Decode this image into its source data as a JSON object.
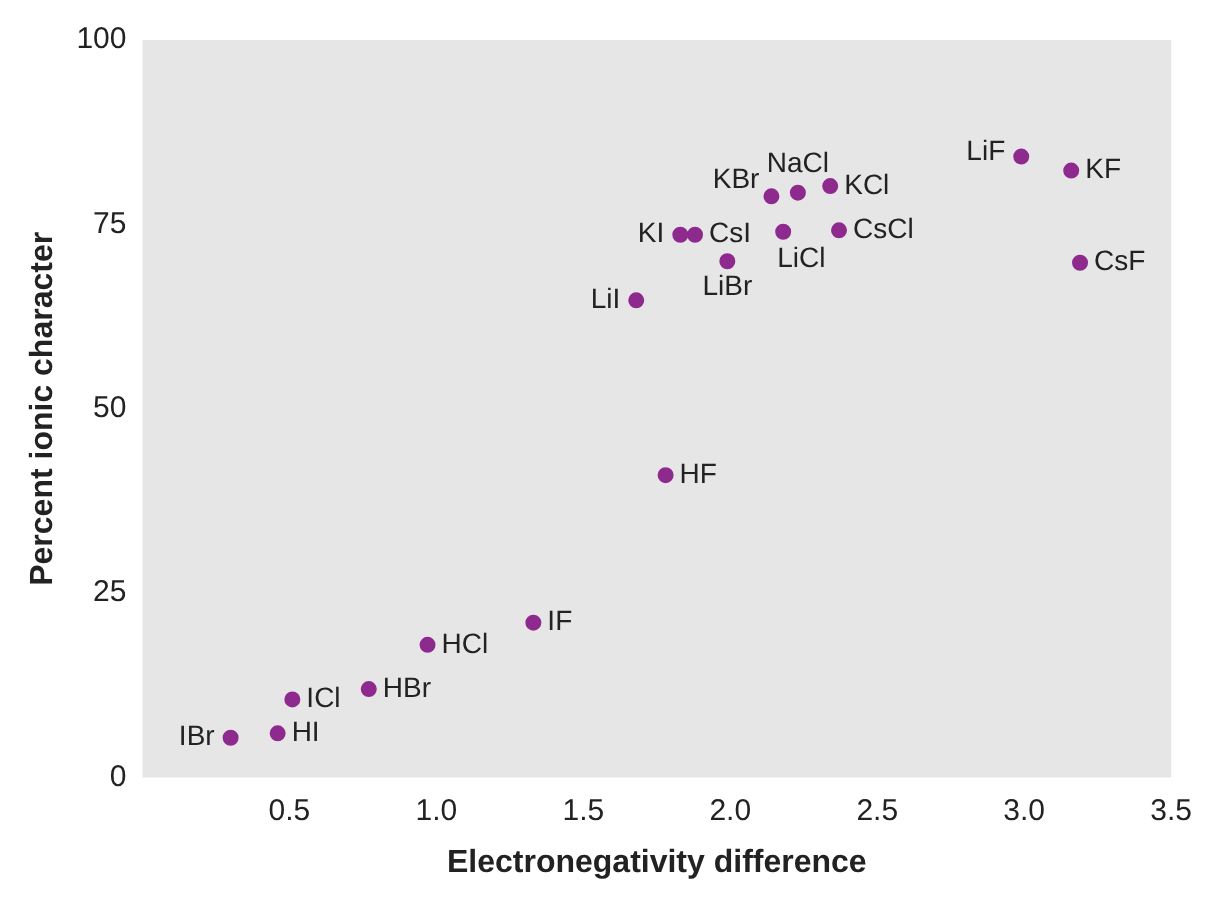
{
  "chart_data": {
    "type": "scatter",
    "xlabel": "Electronegativity difference",
    "ylabel": "Percent ionic character",
    "xlim": [
      0,
      3.5
    ],
    "xticks": [
      0.5,
      {
        "value": 1,
        "label": "1.0"
      },
      1.5,
      {
        "value": 2,
        "label": "2.0"
      },
      2.5,
      {
        "value": 3,
        "label": "3.0"
      },
      3.5
    ],
    "ylim": [
      0,
      100
    ],
    "yticks": [
      0,
      25,
      50,
      75,
      100
    ],
    "grid": false,
    "legend": false,
    "marker": "circle",
    "series": [
      {
        "color": "#8e2a8e",
        "x": [
          0.3,
          0.46,
          0.51,
          0.77,
          0.97,
          1.33,
          1.78,
          1.68,
          1.99,
          1.83,
          1.88,
          2.18,
          2.14,
          2.23,
          2.34,
          2.37,
          2.99,
          3.16,
          3.19
        ],
        "values": [
          5.4,
          6,
          10.6,
          12,
          18,
          21,
          41,
          64.7,
          70,
          73.6,
          73.6,
          74,
          78.8,
          79.3,
          80.2,
          74.2,
          84.2,
          82.3,
          69.8
        ]
      }
    ],
    "annotations": [
      {
        "text": "IBr",
        "x": 0.3,
        "y": 5.4
      },
      {
        "text": "HI",
        "x": 0.46,
        "y": 6
      },
      {
        "text": "ICl",
        "x": 0.51,
        "y": 10.6
      },
      {
        "text": "HBr",
        "x": 0.77,
        "y": 12
      },
      {
        "text": "HCl",
        "x": 0.97,
        "y": 18
      },
      {
        "text": "IF",
        "x": 1.33,
        "y": 21
      },
      {
        "text": "HF",
        "x": 1.78,
        "y": 41
      },
      {
        "text": "LiI",
        "x": 1.68,
        "y": 64.7
      },
      {
        "text": "LiBr",
        "x": 1.99,
        "y": 70
      },
      {
        "text": "KI",
        "x": 1.83,
        "y": 73.6
      },
      {
        "text": "CsI",
        "x": 1.88,
        "y": 73.6
      },
      {
        "text": "LiCl",
        "x": 2.18,
        "y": 74
      },
      {
        "text": "KBr",
        "x": 2.14,
        "y": 78.8
      },
      {
        "text": "NaCl",
        "x": 2.23,
        "y": 79.3
      },
      {
        "text": "KCl",
        "x": 2.34,
        "y": 80.2
      },
      {
        "text": "CsCl",
        "x": 2.37,
        "y": 74.2
      },
      {
        "text": "LiF",
        "x": 2.99,
        "y": 84.2
      },
      {
        "text": "KF",
        "x": 3.16,
        "y": 82.3
      },
      {
        "text": "CsF",
        "x": 3.19,
        "y": 69.8
      }
    ]
  }
}
